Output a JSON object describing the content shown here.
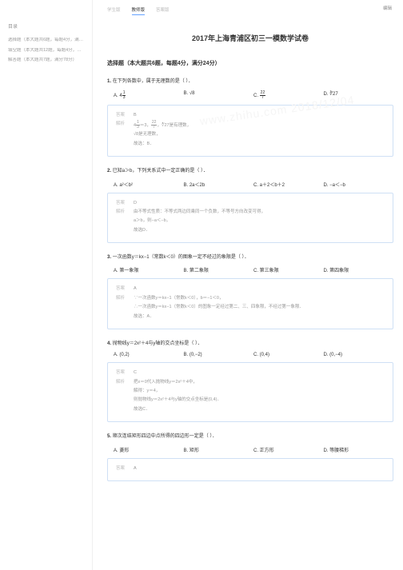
{
  "tabs": {
    "t1": "学生版",
    "t2": "教师版",
    "t3": "答案版"
  },
  "edit": "编辑",
  "title": "2017年上海青浦区初三一模数学试卷",
  "section_header": "选择题（本大题共6题，每题4分，满分24分）",
  "toc": {
    "title": "目录",
    "items": [
      "选择题（本大题共6题，每题4分，满分2…",
      "填空题（本大题共12题，每题4分，满分…",
      "解答题（本大题共7题，满分78分）"
    ]
  },
  "watermark": "www.zhihu.com 2018/12/04",
  "q1": {
    "stem_prefix": "1.",
    "stem": "在下列各数中，属于无理数的是（  ）．",
    "optA_pre": "A. ",
    "optB_pre": "B. ",
    "optC_pre": "C. ",
    "optD_pre": "D. ",
    "optB": "√8",
    "optD": "∛27",
    "ans_label": "答案",
    "ans": "B",
    "exp_label": "解析",
    "exp1_mid": "，",
    "exp1_end": "是有理数，",
    "exp2": "√8是无理数，",
    "exp3": "故选：B．"
  },
  "q2": {
    "stem_prefix": "2.",
    "stem": "已知a＞b，下列关系式中一定正确的是（  ）．",
    "optA": "A. a²＜b²",
    "optB": "B. 2a＜2b",
    "optC": "C. a＋2＜b＋2",
    "optD": "D. −a＜−b",
    "ans_label": "答案",
    "ans": "D",
    "exp_label": "解析",
    "exp1": "由不等式性质：不等式两边同乘同一个负数，不等号方向改变可得，",
    "exp2": "a＞b，则−a＜−b，",
    "exp3": "故选D．"
  },
  "q3": {
    "stem_prefix": "3.",
    "stem": "一次函数y＝kx−1（常数k＜0）的图象一定不经过的象限是（  ）．",
    "optA": "A. 第一象限",
    "optB": "B. 第二象限",
    "optC": "C. 第三象限",
    "optD": "D. 第四象限",
    "ans_label": "答案",
    "ans": "A",
    "exp_label": "解析",
    "exp1": "∵一次函数y＝kx−1（常数k＜0），b＝−1＜0，",
    "exp2": "∴一次函数y＝kx−1（常数k＜0）的图象一定经过第二、三、四象限，不经过第一象限．",
    "exp3": "故选：A．"
  },
  "q4": {
    "stem_prefix": "4.",
    "stem": "抛物线y＝2x²＋4与y轴的交点坐标是（  ）．",
    "optA": "A. (0,2)",
    "optB": "B. (0,−2)",
    "optC": "C. (0,4)",
    "optD": "D. (0,−4)",
    "ans_label": "答案",
    "ans": "C",
    "exp_label": "解析",
    "exp1": "把x＝0代入抛物线y＝2x²＋4中，",
    "exp2": "解得：y＝4，",
    "exp3": "则抛物线y＝2x²＋4与y轴的交点坐标是(0,4)．",
    "exp4": "故选C．"
  },
  "q5": {
    "stem_prefix": "5.",
    "stem": "顺次连结矩形四边中点所得的四边形一定是（  ）．",
    "optA": "A. 菱形",
    "optB": "B. 矩形",
    "optC": "C. 正方形",
    "optD": "D. 等腰梯形",
    "ans_label": "答案",
    "ans": "A"
  },
  "frac": {
    "n1": "1",
    "d1": "3",
    "n2": "22",
    "d2": "7"
  }
}
